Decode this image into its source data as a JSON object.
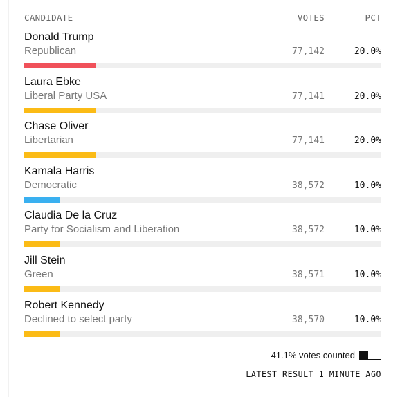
{
  "header": {
    "candidate": "CANDIDATE",
    "votes": "VOTES",
    "pct": "PCT"
  },
  "candidates": [
    {
      "name": "Donald Trump",
      "party": "Republican",
      "votes": "77,142",
      "pct": "20.0%",
      "share": 20.0,
      "color": "#f0515a"
    },
    {
      "name": "Laura Ebke",
      "party": "Liberal Party USA",
      "votes": "77,141",
      "pct": "20.0%",
      "share": 20.0,
      "color": "#fbbb16"
    },
    {
      "name": "Chase Oliver",
      "party": "Libertarian",
      "votes": "77,141",
      "pct": "20.0%",
      "share": 20.0,
      "color": "#fbbb16"
    },
    {
      "name": "Kamala Harris",
      "party": "Democratic",
      "votes": "38,572",
      "pct": "10.0%",
      "share": 10.0,
      "color": "#3ab0f0"
    },
    {
      "name": "Claudia De la Cruz",
      "party": "Party for Socialism and Liberation",
      "votes": "38,572",
      "pct": "10.0%",
      "share": 10.0,
      "color": "#fbbb16"
    },
    {
      "name": "Jill Stein",
      "party": "Green",
      "votes": "38,571",
      "pct": "10.0%",
      "share": 10.0,
      "color": "#fbbb16"
    },
    {
      "name": "Robert Kennedy",
      "party": "Declined to select party",
      "votes": "38,570",
      "pct": "10.0%",
      "share": 10.0,
      "color": "#fbbb16"
    }
  ],
  "footer": {
    "counted_text": "41.1% votes counted",
    "counted_share": 41.1,
    "latest": "LATEST RESULT 1 MINUTE AGO"
  }
}
